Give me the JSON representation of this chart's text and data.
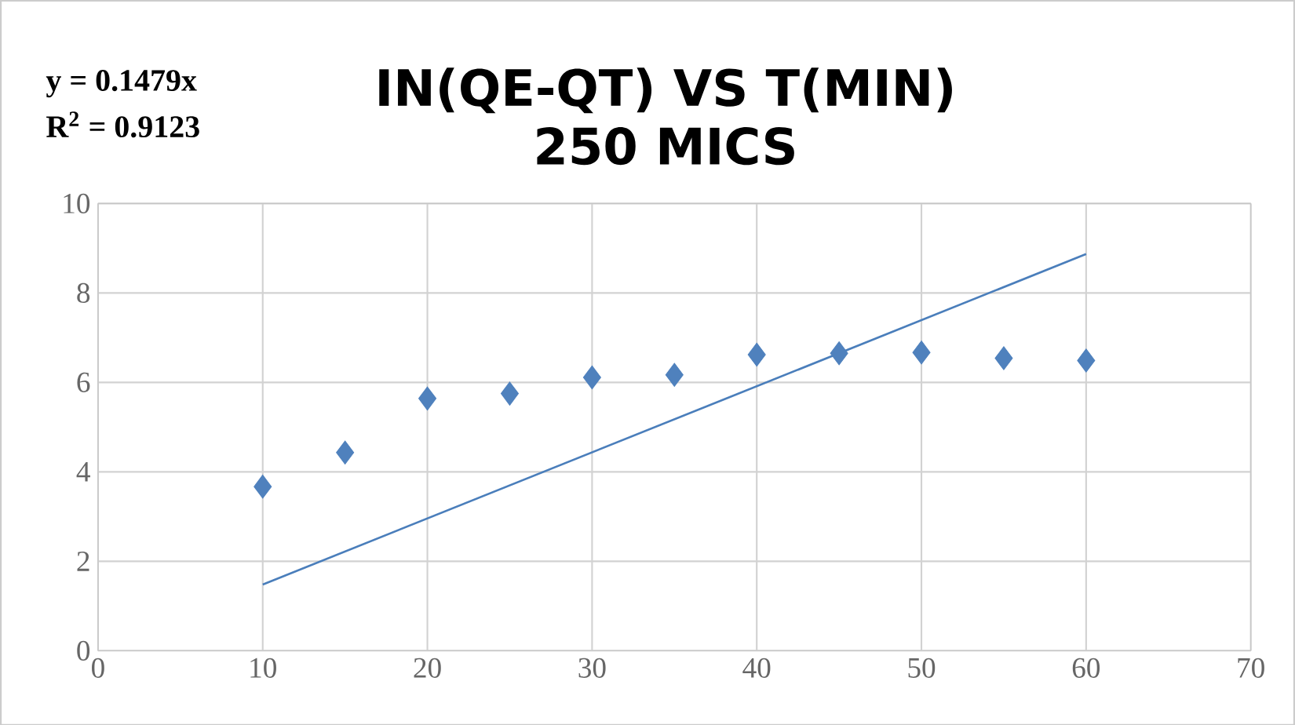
{
  "chart_data": {
    "type": "scatter",
    "title": "IN(QE-QT) VS T(MIN)",
    "subtitle": "250 MICS",
    "annotations": [
      "y = 0.1479x",
      "R$^{2}$ = 0.9123"
    ],
    "x": [
      10,
      15,
      20,
      25,
      30,
      35,
      40,
      45,
      50,
      55,
      60
    ],
    "series": [
      {
        "color": "#4f81bd",
        "marker": "diamond",
        "values": [
          3.67,
          4.43,
          5.64,
          5.75,
          6.11,
          6.17,
          6.62,
          6.65,
          6.67,
          6.54,
          6.49
        ]
      },
      {
        "type": "line",
        "color": "#4a7ebb",
        "marker": "none",
        "x": [
          10,
          60
        ],
        "values": [
          1.48,
          8.87
        ]
      }
    ],
    "xlim": [
      0,
      70
    ],
    "xticks": [
      0,
      10,
      20,
      30,
      40,
      50,
      60,
      70
    ],
    "ylim": [
      0,
      10
    ],
    "yticks": [
      0,
      2,
      4,
      6,
      8,
      10
    ],
    "grid": true
  }
}
